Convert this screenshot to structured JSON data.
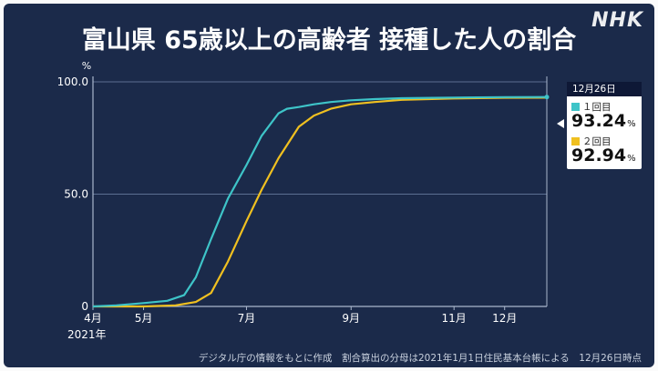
{
  "title": "富山県 65歳以上の高齢者 接種した人の割合",
  "logo": "NHK",
  "source_note": "デジタル庁の情報をもとに作成　割合算出の分母は2021年1月1日住民基本台帳による　12月26日時点",
  "legend": {
    "date": "12月26日",
    "items": [
      {
        "label": "１回目",
        "value": "93.24",
        "unit": "%",
        "color": "#3ec4c8"
      },
      {
        "label": "２回目",
        "value": "92.94",
        "unit": "%",
        "color": "#f0c020"
      }
    ]
  },
  "chart_data": {
    "type": "line",
    "title": "富山県 65歳以上の高齢者 接種した人の割合",
    "ylabel": "%",
    "ylim": [
      0,
      100
    ],
    "yticks": [
      "0",
      "50.0",
      "100.0"
    ],
    "xtick_labels": [
      "4月",
      "5月",
      "7月",
      "9月",
      "11月",
      "12月"
    ],
    "year_label": "2021年",
    "xlim": [
      "2021-04-01",
      "2021-12-26"
    ],
    "xticks": [
      "2021-04-01",
      "2021-05-01",
      "2021-07-01",
      "2021-09-01",
      "2021-11-01",
      "2021-12-01"
    ],
    "grid": "horizontal",
    "series": [
      {
        "name": "１回目",
        "color": "#3ec4c8",
        "x": [
          "2021-04-01",
          "2021-04-15",
          "2021-05-01",
          "2021-05-15",
          "2021-05-25",
          "2021-06-01",
          "2021-06-10",
          "2021-06-20",
          "2021-07-01",
          "2021-07-10",
          "2021-07-20",
          "2021-07-25",
          "2021-08-01",
          "2021-08-10",
          "2021-08-20",
          "2021-09-01",
          "2021-09-15",
          "2021-10-01",
          "2021-11-01",
          "2021-12-01",
          "2021-12-26"
        ],
        "values": [
          0,
          0.5,
          1.5,
          2.5,
          5,
          13,
          30,
          48,
          63,
          76,
          86,
          88,
          88.8,
          90,
          91,
          91.8,
          92.3,
          92.7,
          93,
          93.2,
          93.24
        ]
      },
      {
        "name": "２回目",
        "color": "#f0c020",
        "x": [
          "2021-04-01",
          "2021-05-01",
          "2021-05-20",
          "2021-06-01",
          "2021-06-10",
          "2021-06-20",
          "2021-07-01",
          "2021-07-10",
          "2021-07-20",
          "2021-08-01",
          "2021-08-10",
          "2021-08-20",
          "2021-09-01",
          "2021-09-15",
          "2021-10-01",
          "2021-11-01",
          "2021-12-01",
          "2021-12-26"
        ],
        "values": [
          0,
          0,
          0.5,
          2,
          6,
          20,
          38,
          52,
          66,
          80,
          85,
          88,
          90,
          91,
          92,
          92.6,
          92.9,
          92.94
        ]
      }
    ],
    "end_marker": "2021-12-26"
  }
}
